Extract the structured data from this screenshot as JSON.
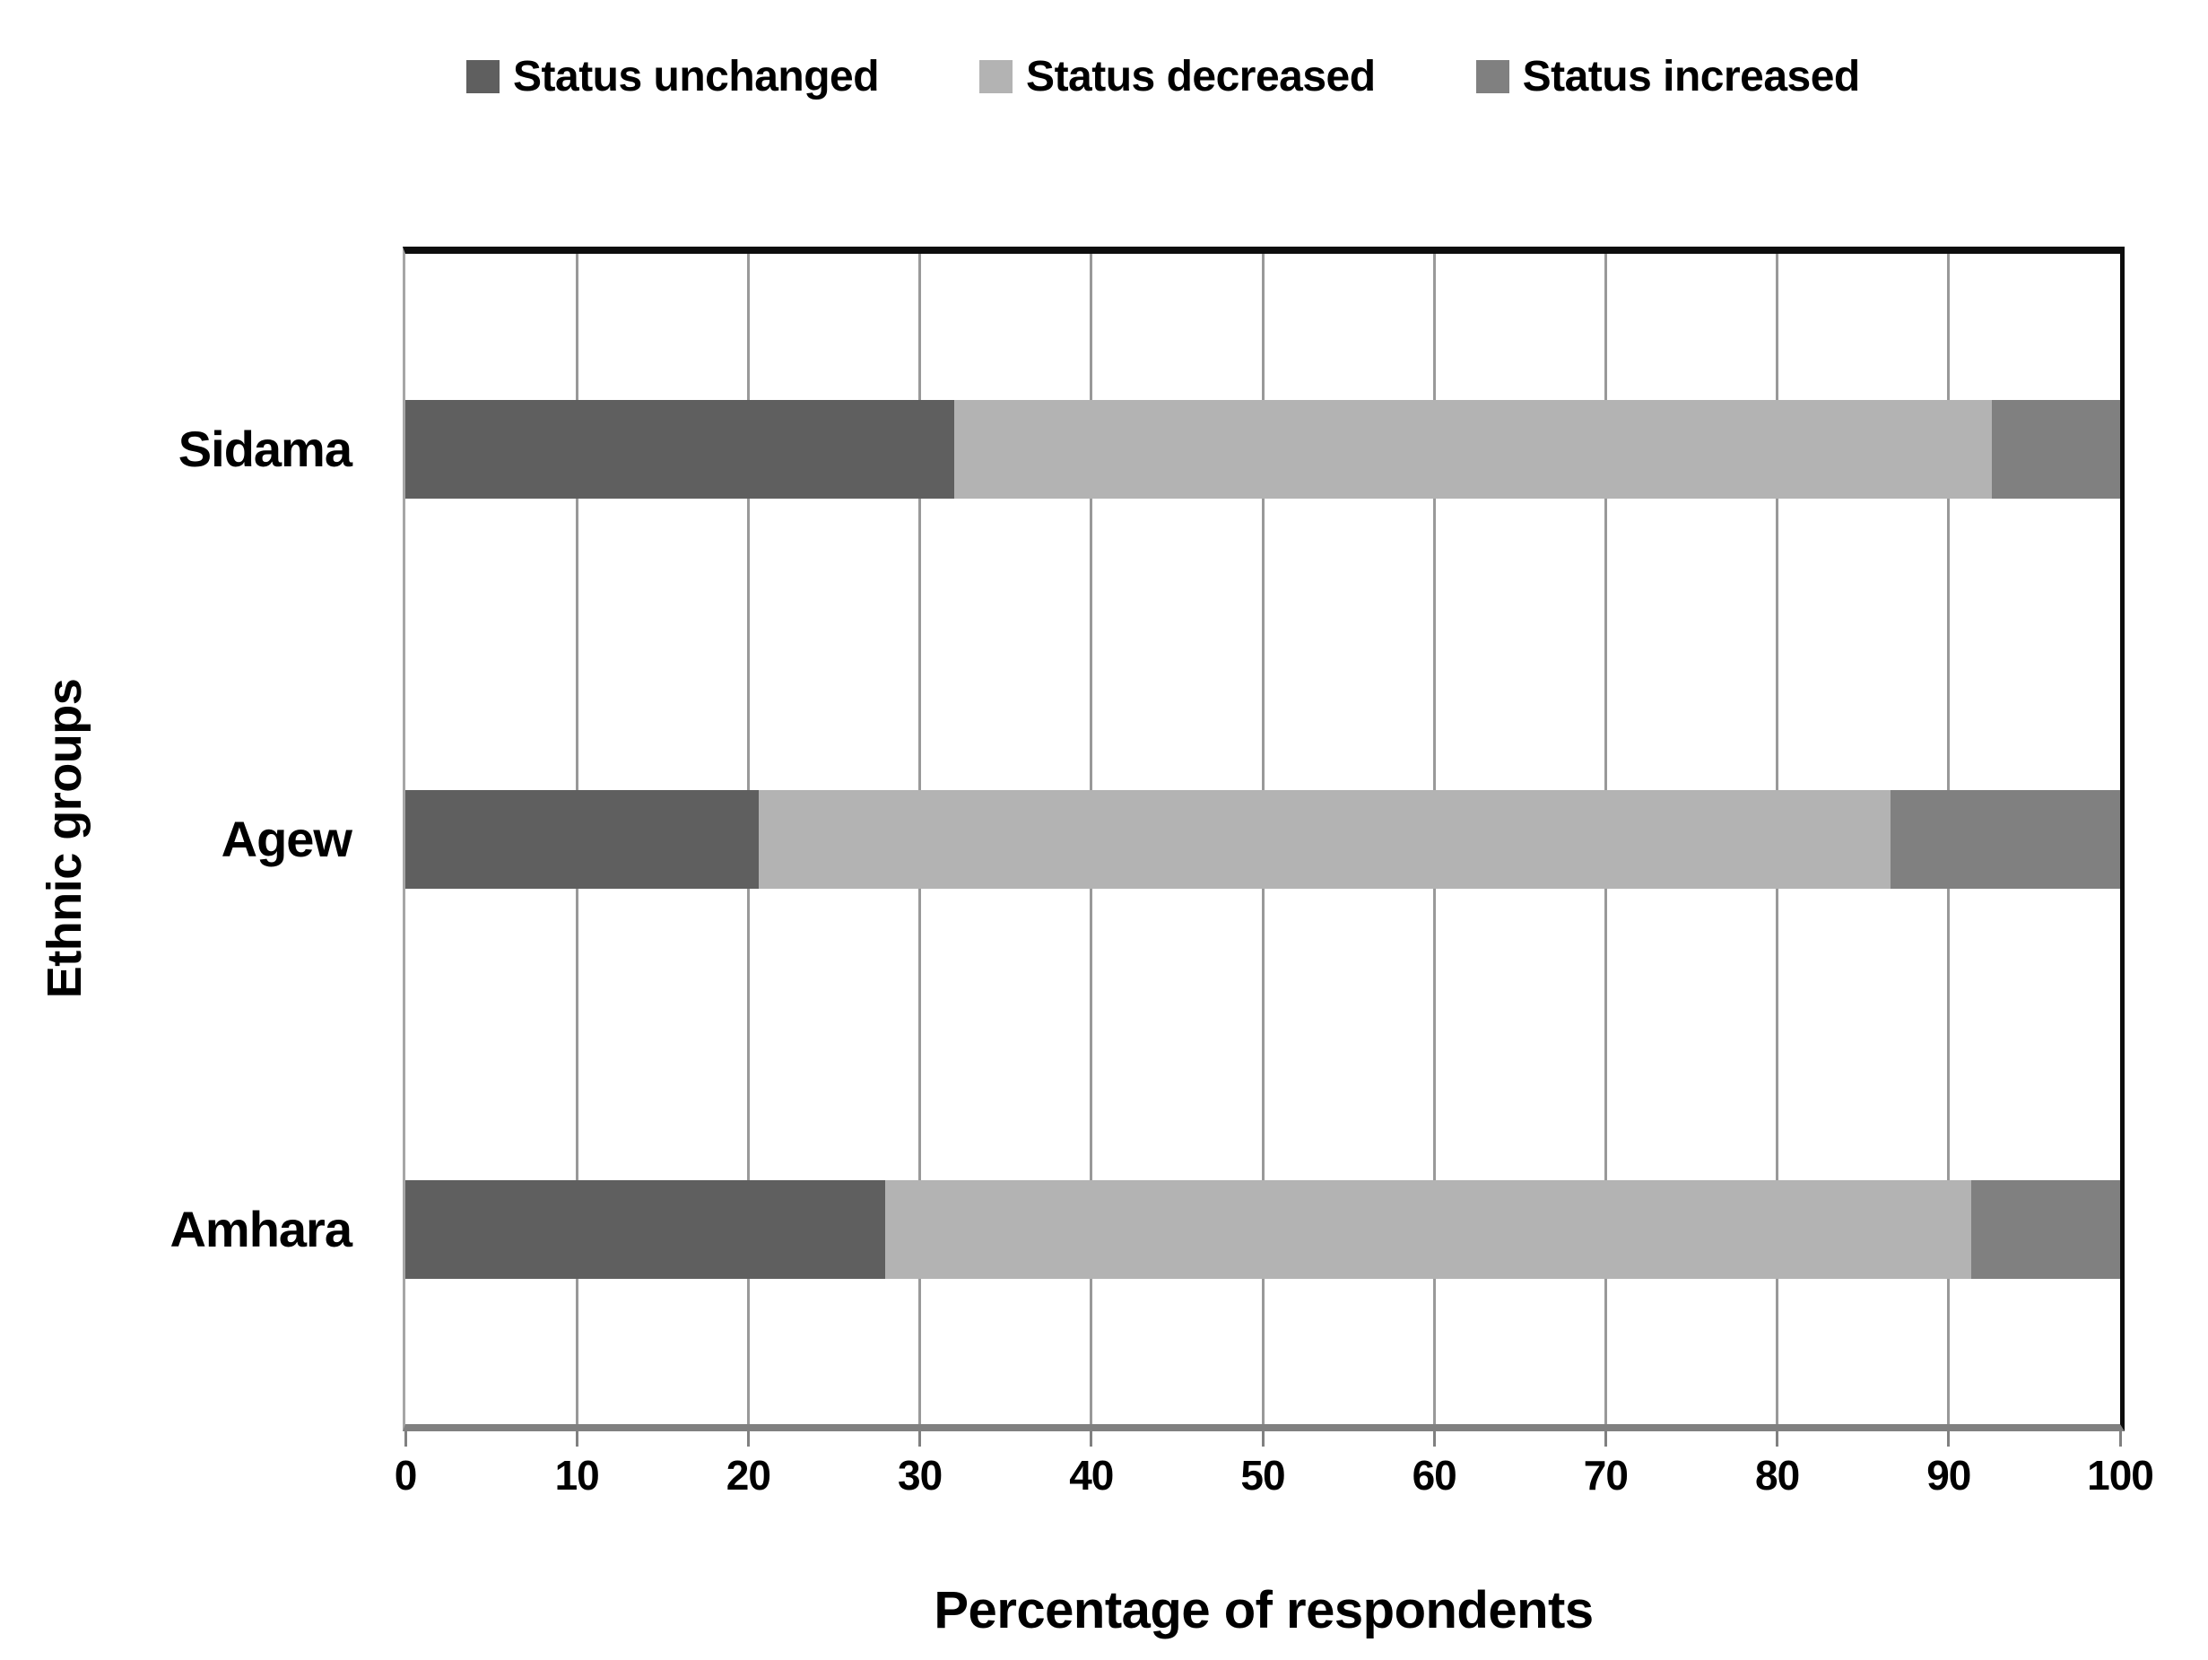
{
  "chart_data": {
    "type": "bar",
    "orientation": "horizontal",
    "stacked": true,
    "title": "",
    "categories": [
      "Sidama",
      "Agew",
      "Amhara"
    ],
    "series": [
      {
        "name": "Status unchanged",
        "color": "#5f5f5f",
        "values": [
          32.0,
          20.6,
          28.0
        ]
      },
      {
        "name": "Status decreased",
        "color": "#b3b3b3",
        "values": [
          60.5,
          66.0,
          63.3
        ]
      },
      {
        "name": "Status increased",
        "color": "#808080",
        "values": [
          7.5,
          13.4,
          8.7
        ]
      }
    ],
    "xlabel": "Percentage of respondents",
    "ylabel": "Ethnic groups",
    "xlim": [
      0,
      100
    ],
    "xticks": [
      0,
      10,
      20,
      30,
      40,
      50,
      60,
      70,
      80,
      90,
      100
    ],
    "grid": "vertical gridlines every 10 units",
    "legend_position": "top",
    "gridline_color": "#999999",
    "axis_line_color": "#808080",
    "plot_border_color": "#0d0d0d",
    "background_color": "#ffffff"
  }
}
